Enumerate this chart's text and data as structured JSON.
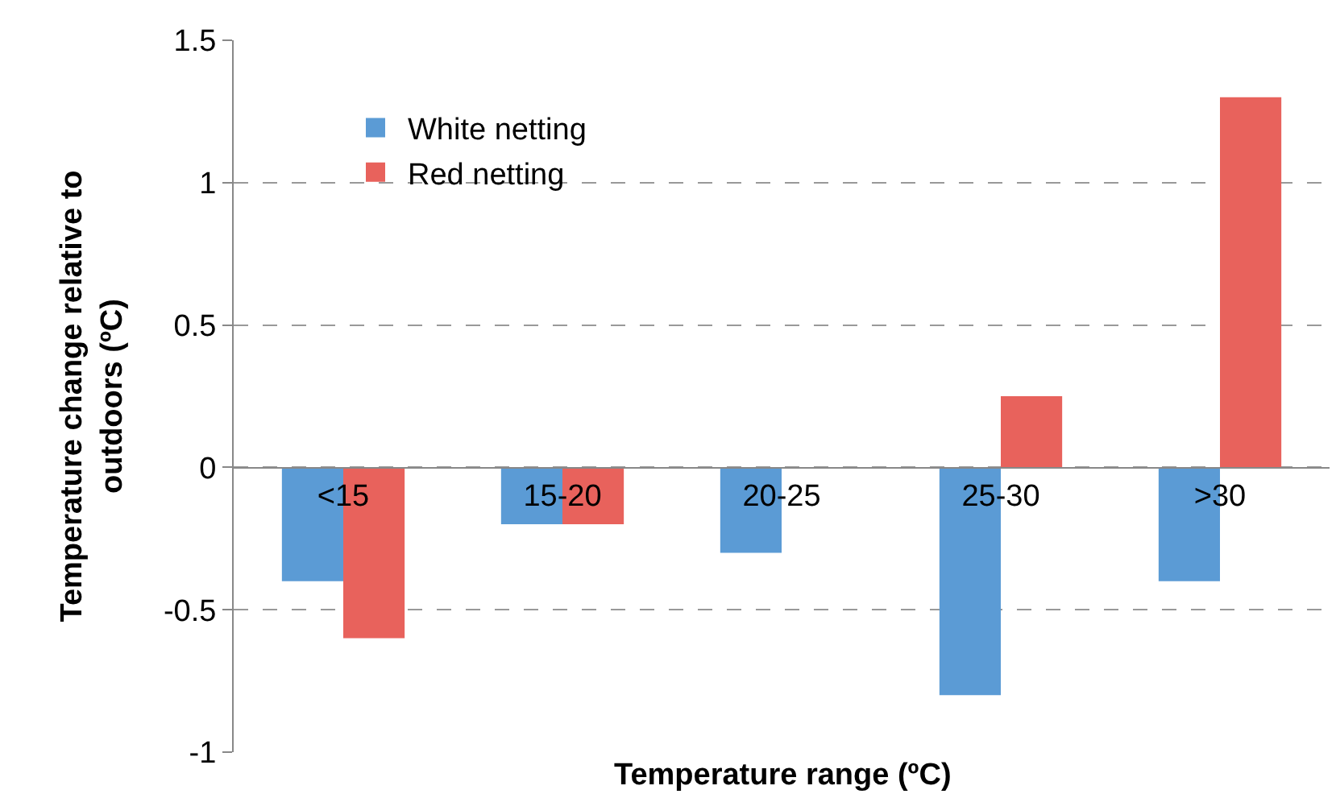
{
  "chart_data": {
    "type": "bar",
    "xlabel": "Temperature range (ºC)",
    "ylabel": "Temperature change relative to\noutdoors (ºC)",
    "categories": [
      "<15",
      "15-20",
      "20-25",
      "25-30",
      ">30"
    ],
    "series": [
      {
        "name": "White netting",
        "color": "#5b9bd5",
        "values": [
          -0.4,
          -0.2,
          -0.3,
          -0.8,
          -0.4
        ]
      },
      {
        "name": "Red netting",
        "color": "#e8625c",
        "values": [
          -0.6,
          -0.2,
          0,
          0.25,
          1.3
        ]
      }
    ],
    "ylim": [
      -1,
      1.5
    ],
    "yticks": [
      -1,
      -0.5,
      0,
      0.5,
      1,
      1.5
    ],
    "grid": "y",
    "legend": "top left"
  }
}
